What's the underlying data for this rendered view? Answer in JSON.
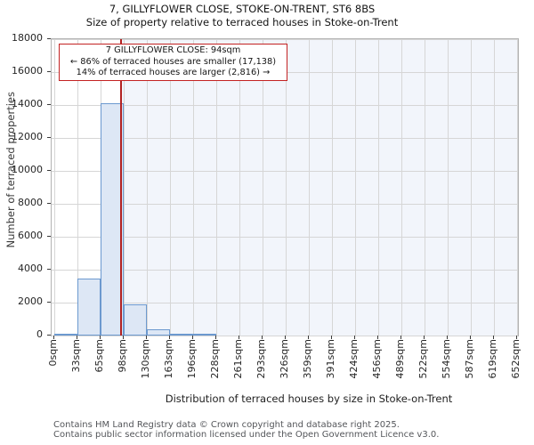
{
  "title": "7, GILLYFLOWER CLOSE, STOKE-ON-TRENT, ST6 8BS",
  "subtitle": "Size of property relative to terraced houses in Stoke-on-Trent",
  "annotation": {
    "line1": "7 GILLYFLOWER CLOSE: 94sqm",
    "line2": "← 86% of terraced houses are smaller (17,138)",
    "line3": "14% of terraced houses are larger (2,816) →"
  },
  "footer": {
    "line1": "Contains HM Land Registry data © Crown copyright and database right 2025.",
    "line2": "Contains public sector information licensed under the Open Government Licence v3.0."
  },
  "chart_data": {
    "type": "bar",
    "subtype": "histogram",
    "title": "7, GILLYFLOWER CLOSE, STOKE-ON-TRENT, ST6 8BS",
    "subtitle": "Size of property relative to terraced houses in Stoke-on-Trent",
    "xlabel": "Distribution of terraced houses by size in Stoke-on-Trent",
    "ylabel": "Number of terraced properties",
    "xlim": [
      0,
      652
    ],
    "ylim": [
      0,
      18000
    ],
    "grid": true,
    "legend": false,
    "x_tick_values": [
      0,
      33,
      65,
      98,
      130,
      163,
      196,
      228,
      261,
      293,
      326,
      359,
      391,
      424,
      456,
      489,
      522,
      554,
      587,
      619,
      652
    ],
    "x_tick_labels": [
      "0sqm",
      "33sqm",
      "65sqm",
      "98sqm",
      "130sqm",
      "163sqm",
      "196sqm",
      "228sqm",
      "261sqm",
      "293sqm",
      "326sqm",
      "359sqm",
      "391sqm",
      "424sqm",
      "456sqm",
      "489sqm",
      "522sqm",
      "554sqm",
      "587sqm",
      "619sqm",
      "652sqm"
    ],
    "y_ticks": [
      0,
      2000,
      4000,
      6000,
      8000,
      10000,
      12000,
      14000,
      16000,
      18000
    ],
    "bin_edges": [
      0,
      32.6,
      65.2,
      97.8,
      130.4,
      163,
      195.6,
      228.2,
      260.8,
      293.4,
      326,
      358.6,
      391.2,
      423.8,
      456.4,
      489,
      521.6,
      554.2,
      586.8,
      619.4,
      652
    ],
    "counts": [
      50,
      3450,
      14100,
      1880,
      380,
      60,
      34,
      0,
      0,
      0,
      0,
      0,
      0,
      0,
      0,
      0,
      0,
      0,
      0,
      0
    ],
    "marker": {
      "value_sqm": 94,
      "percent_smaller": 86,
      "count_smaller": "17,138",
      "percent_larger": 14,
      "count_larger": "2,816"
    },
    "colors": {
      "bar_fill": "#dde7f5",
      "bar_edge": "#6c99cf",
      "marker_line": "#b22222",
      "annotation_border": "#c32222",
      "shade_right_of_marker": "#f2f5fb",
      "gridline": "#d6d6d6",
      "frame": "#b3b3b3"
    }
  }
}
